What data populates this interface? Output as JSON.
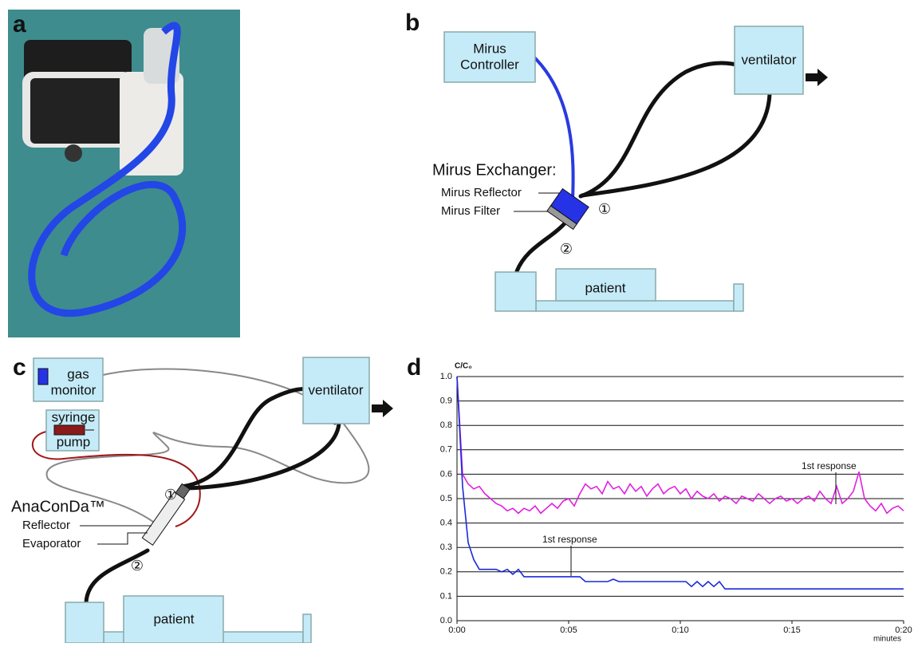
{
  "panel_labels": [
    "a",
    "b",
    "c",
    "d"
  ],
  "panel_b": {
    "controller": [
      "Mirus",
      "Controller"
    ],
    "ventilator": "ventilator",
    "exchanger_title": "Mirus Exchanger:",
    "reflector": "Mirus Reflector",
    "filter": "Mirus Filter",
    "marker_1": "①",
    "marker_2": "②",
    "patient": "patient"
  },
  "panel_c": {
    "gas_monitor": [
      "gas",
      "monitor"
    ],
    "syringe_pump": [
      "syringe",
      "pump"
    ],
    "ventilator": "ventilator",
    "device": "AnaConDa™",
    "reflector": "Reflector",
    "evaporator": "Evaporator",
    "marker_1": "①",
    "marker_2": "②",
    "patient": "patient"
  },
  "chart_data": {
    "type": "line",
    "y_label": "C/C₀",
    "x_label": "minutes",
    "annotations": [
      "1st response",
      "1st response"
    ],
    "x": [
      0,
      0.25,
      0.5,
      0.75,
      1,
      1.25,
      1.5,
      1.75,
      2,
      2.25,
      2.5,
      2.75,
      3,
      3.25,
      3.5,
      3.75,
      4,
      4.25,
      4.5,
      4.75,
      5,
      5.25,
      5.5,
      5.75,
      6,
      6.25,
      6.5,
      6.75,
      7,
      7.25,
      7.5,
      7.75,
      8,
      8.25,
      8.5,
      8.75,
      9,
      9.25,
      9.5,
      9.75,
      10,
      10.25,
      10.5,
      10.75,
      11,
      11.25,
      11.5,
      11.75,
      12,
      12.25,
      12.5,
      12.75,
      13,
      13.25,
      13.5,
      13.75,
      14,
      14.25,
      14.5,
      14.75,
      15,
      15.25,
      15.5,
      15.75,
      16,
      16.25,
      16.5,
      16.75,
      17,
      17.25,
      17.5,
      17.75,
      18,
      18.25,
      18.5,
      18.75,
      19,
      19.25,
      19.5,
      19.75,
      20
    ],
    "series": [
      {
        "color": "#e020e0",
        "values": [
          1.0,
          0.6,
          0.56,
          0.54,
          0.55,
          0.52,
          0.5,
          0.48,
          0.47,
          0.45,
          0.46,
          0.44,
          0.46,
          0.45,
          0.47,
          0.44,
          0.46,
          0.48,
          0.46,
          0.49,
          0.5,
          0.47,
          0.52,
          0.56,
          0.54,
          0.55,
          0.52,
          0.57,
          0.54,
          0.55,
          0.52,
          0.56,
          0.53,
          0.55,
          0.51,
          0.54,
          0.56,
          0.52,
          0.54,
          0.55,
          0.52,
          0.54,
          0.5,
          0.53,
          0.51,
          0.5,
          0.52,
          0.49,
          0.51,
          0.5,
          0.48,
          0.51,
          0.5,
          0.49,
          0.52,
          0.5,
          0.48,
          0.5,
          0.51,
          0.49,
          0.5,
          0.48,
          0.5,
          0.51,
          0.49,
          0.53,
          0.5,
          0.48,
          0.55,
          0.48,
          0.5,
          0.53,
          0.61,
          0.5,
          0.47,
          0.45,
          0.48,
          0.44,
          0.46,
          0.47,
          0.45
        ]
      },
      {
        "color": "#1a2ad8",
        "values": [
          1.0,
          0.55,
          0.32,
          0.25,
          0.21,
          0.21,
          0.21,
          0.21,
          0.2,
          0.21,
          0.19,
          0.21,
          0.18,
          0.18,
          0.18,
          0.18,
          0.18,
          0.18,
          0.18,
          0.18,
          0.18,
          0.18,
          0.18,
          0.16,
          0.16,
          0.16,
          0.16,
          0.16,
          0.17,
          0.16,
          0.16,
          0.16,
          0.16,
          0.16,
          0.16,
          0.16,
          0.16,
          0.16,
          0.16,
          0.16,
          0.16,
          0.16,
          0.14,
          0.16,
          0.14,
          0.16,
          0.14,
          0.16,
          0.13,
          0.13,
          0.13,
          0.13,
          0.13,
          0.13,
          0.13,
          0.13,
          0.13,
          0.13,
          0.13,
          0.13,
          0.13,
          0.13,
          0.13,
          0.13,
          0.13,
          0.13,
          0.13,
          0.13,
          0.13,
          0.13,
          0.13,
          0.13,
          0.13,
          0.13,
          0.13,
          0.13,
          0.13,
          0.13,
          0.13,
          0.13,
          0.13
        ]
      }
    ],
    "xlim": [
      0,
      20
    ],
    "ylim": [
      0,
      1
    ],
    "xticks": [
      {
        "value": 0,
        "label": "0:00"
      },
      {
        "value": 5,
        "label": "0:05"
      },
      {
        "value": 10,
        "label": "0:10"
      },
      {
        "value": 15,
        "label": "0:15"
      },
      {
        "value": 20,
        "label": "0:20"
      }
    ],
    "yticks": [
      {
        "value": 0,
        "label": "0.0"
      },
      0.1,
      0.2,
      0.3,
      0.4,
      0.5,
      0.6,
      0.7,
      0.8,
      0.9,
      {
        "value": 1,
        "label": "1.0"
      }
    ],
    "grid": true
  }
}
